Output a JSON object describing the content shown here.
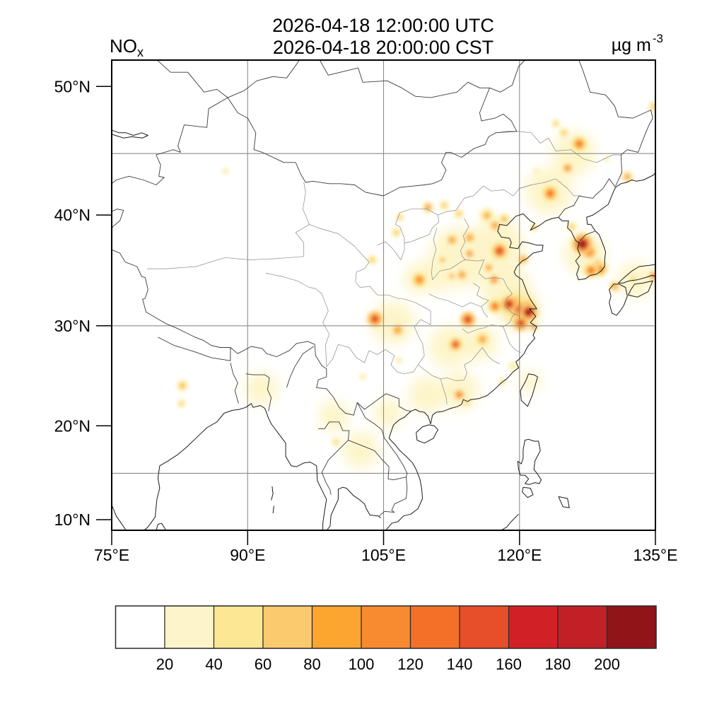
{
  "header": {
    "variable": "NO",
    "variable_sub": "x",
    "title_line1": "2026-04-18 12:00:00 UTC",
    "title_line2": "2026-04-18 20:00:00 CST",
    "units": "µg m",
    "units_exp": "-3"
  },
  "chart_data": {
    "type": "heatmap",
    "projection": "mercator",
    "lon_range": [
      75,
      135
    ],
    "lat_range": [
      8.9,
      51.9
    ],
    "x_ticks": [
      {
        "lon": 75,
        "label": "75°E"
      },
      {
        "lon": 90,
        "label": "90°E"
      },
      {
        "lon": 105,
        "label": "105°E"
      },
      {
        "lon": 120,
        "label": "120°E"
      },
      {
        "lon": 135,
        "label": "135°E"
      }
    ],
    "y_ticks": [
      {
        "lat": 10,
        "label": "10°N"
      },
      {
        "lat": 20,
        "label": "20°N"
      },
      {
        "lat": 30,
        "label": "30°N"
      },
      {
        "lat": 40,
        "label": "40°N"
      },
      {
        "lat": 50,
        "label": "50°N"
      }
    ],
    "grid_lons": [
      90,
      105,
      120
    ],
    "grid_lats": [
      15,
      30,
      45
    ],
    "grid_color": "#8c8c8c",
    "colorbar": {
      "levels": [
        20,
        40,
        60,
        80,
        100,
        120,
        140,
        160,
        180,
        200
      ],
      "colors": [
        "#ffffff",
        "#fdf5c9",
        "#fbe794",
        "#fcca6e",
        "#fda62f",
        "#f88b30",
        "#f47029",
        "#e74e2a",
        "#d22027",
        "#c02026",
        "#911419"
      ]
    },
    "washes": [
      {
        "lon": 113.5,
        "lat": 36.3,
        "value": 30,
        "r": 3.4
      },
      {
        "lon": 117.5,
        "lat": 37.3,
        "value": 35,
        "r": 3.0
      },
      {
        "lon": 118.5,
        "lat": 33.5,
        "value": 30,
        "r": 2.7
      },
      {
        "lon": 120.0,
        "lat": 31.5,
        "value": 45,
        "r": 2.0
      },
      {
        "lon": 123.3,
        "lat": 42.0,
        "value": 30,
        "r": 2.6
      },
      {
        "lon": 126.0,
        "lat": 45.0,
        "value": 28,
        "r": 2.4
      },
      {
        "lon": 106.0,
        "lat": 30.3,
        "value": 30,
        "r": 2.4
      },
      {
        "lon": 112.3,
        "lat": 28.0,
        "value": 28,
        "r": 2.3
      },
      {
        "lon": 115.6,
        "lat": 28.4,
        "value": 28,
        "r": 2.0
      },
      {
        "lon": 113.4,
        "lat": 23.6,
        "value": 30,
        "r": 2.1
      },
      {
        "lon": 127.2,
        "lat": 36.6,
        "value": 32,
        "r": 2.3
      },
      {
        "lon": 132.8,
        "lat": 34.3,
        "value": 28,
        "r": 2.0
      },
      {
        "lon": 109.8,
        "lat": 23.2,
        "value": 24,
        "r": 2.0
      },
      {
        "lon": 102.5,
        "lat": 17.5,
        "value": 24,
        "r": 2.0
      },
      {
        "lon": 99.5,
        "lat": 21.0,
        "value": 24,
        "r": 1.7
      },
      {
        "lon": 105.5,
        "lat": 21.3,
        "value": 28,
        "r": 1.6
      },
      {
        "lon": 91.5,
        "lat": 23.8,
        "value": 24,
        "r": 1.8
      },
      {
        "lon": 121.2,
        "lat": 24.5,
        "value": 24,
        "r": 1.2
      },
      {
        "lon": 110.8,
        "lat": 34.8,
        "value": 30,
        "r": 2.0
      },
      {
        "lon": 108.8,
        "lat": 34.4,
        "value": 30,
        "r": 1.6
      }
    ],
    "hotspots": [
      {
        "lon": 126.95,
        "lat": 37.5,
        "value": 200,
        "r": 1.15
      },
      {
        "lon": 127.7,
        "lat": 36.8,
        "value": 100,
        "r": 1.2
      },
      {
        "lon": 127.9,
        "lat": 35.15,
        "value": 130,
        "r": 0.85
      },
      {
        "lon": 128.9,
        "lat": 35.25,
        "value": 120,
        "r": 0.8
      },
      {
        "lon": 128.6,
        "lat": 35.85,
        "value": 90,
        "r": 0.6
      },
      {
        "lon": 129.35,
        "lat": 35.55,
        "value": 90,
        "r": 0.5
      },
      {
        "lon": 121.0,
        "lat": 31.3,
        "value": 200,
        "r": 1.0
      },
      {
        "lon": 120.0,
        "lat": 31.55,
        "value": 160,
        "r": 0.95
      },
      {
        "lon": 118.85,
        "lat": 32.05,
        "value": 180,
        "r": 0.9
      },
      {
        "lon": 120.15,
        "lat": 30.25,
        "value": 170,
        "r": 0.85
      },
      {
        "lon": 121.55,
        "lat": 29.9,
        "value": 100,
        "r": 0.6
      },
      {
        "lon": 120.9,
        "lat": 32.05,
        "value": 110,
        "r": 0.6
      },
      {
        "lon": 119.5,
        "lat": 32.3,
        "value": 130,
        "r": 0.7
      },
      {
        "lon": 117.3,
        "lat": 31.85,
        "value": 130,
        "r": 0.8
      },
      {
        "lon": 114.3,
        "lat": 30.6,
        "value": 170,
        "r": 0.85
      },
      {
        "lon": 104.05,
        "lat": 30.65,
        "value": 170,
        "r": 0.85
      },
      {
        "lon": 106.55,
        "lat": 29.6,
        "value": 90,
        "r": 0.9
      },
      {
        "lon": 112.95,
        "lat": 28.2,
        "value": 150,
        "r": 0.8
      },
      {
        "lon": 115.9,
        "lat": 28.7,
        "value": 110,
        "r": 0.7
      },
      {
        "lon": 116.4,
        "lat": 39.95,
        "value": 85,
        "r": 0.9
      },
      {
        "lon": 117.3,
        "lat": 39.1,
        "value": 95,
        "r": 0.8
      },
      {
        "lon": 118.3,
        "lat": 39.65,
        "value": 85,
        "r": 0.7
      },
      {
        "lon": 114.5,
        "lat": 38.05,
        "value": 95,
        "r": 0.8
      },
      {
        "lon": 112.55,
        "lat": 37.85,
        "value": 95,
        "r": 0.8
      },
      {
        "lon": 117.8,
        "lat": 36.9,
        "value": 145,
        "r": 1.0
      },
      {
        "lon": 120.4,
        "lat": 36.15,
        "value": 90,
        "r": 0.7
      },
      {
        "lon": 113.65,
        "lat": 34.75,
        "value": 95,
        "r": 0.8
      },
      {
        "lon": 117.2,
        "lat": 34.3,
        "value": 100,
        "r": 0.8
      },
      {
        "lon": 108.95,
        "lat": 34.3,
        "value": 115,
        "r": 0.8
      },
      {
        "lon": 109.9,
        "lat": 40.65,
        "value": 100,
        "r": 0.7
      },
      {
        "lon": 111.7,
        "lat": 40.8,
        "value": 70,
        "r": 0.6
      },
      {
        "lon": 123.4,
        "lat": 41.8,
        "value": 120,
        "r": 0.9
      },
      {
        "lon": 125.3,
        "lat": 43.85,
        "value": 100,
        "r": 0.8
      },
      {
        "lon": 126.6,
        "lat": 45.75,
        "value": 120,
        "r": 0.85
      },
      {
        "lon": 124.9,
        "lat": 46.6,
        "value": 70,
        "r": 0.6
      },
      {
        "lon": 124.0,
        "lat": 47.3,
        "value": 60,
        "r": 0.5
      },
      {
        "lon": 131.9,
        "lat": 43.15,
        "value": 90,
        "r": 0.7
      },
      {
        "lon": 134.85,
        "lat": 48.55,
        "value": 75,
        "r": 0.7
      },
      {
        "lon": 125.8,
        "lat": 39.0,
        "value": 70,
        "r": 0.6
      },
      {
        "lon": 113.35,
        "lat": 23.2,
        "value": 105,
        "r": 0.9
      },
      {
        "lon": 114.15,
        "lat": 22.35,
        "value": 75,
        "r": 0.5
      },
      {
        "lon": 130.5,
        "lat": 33.7,
        "value": 90,
        "r": 0.7
      },
      {
        "lon": 134.8,
        "lat": 34.65,
        "value": 105,
        "r": 0.8
      },
      {
        "lon": 132.5,
        "lat": 34.4,
        "value": 70,
        "r": 0.5
      },
      {
        "lon": 82.8,
        "lat": 24.1,
        "value": 80,
        "r": 0.7
      },
      {
        "lon": 82.7,
        "lat": 22.3,
        "value": 60,
        "r": 0.5
      },
      {
        "lon": 99.75,
        "lat": 18.3,
        "value": 70,
        "r": 0.5
      },
      {
        "lon": 87.6,
        "lat": 43.6,
        "value": 45,
        "r": 0.6
      },
      {
        "lon": 103.75,
        "lat": 36.1,
        "value": 60,
        "r": 0.6
      },
      {
        "lon": 106.4,
        "lat": 38.5,
        "value": 60,
        "r": 0.6
      },
      {
        "lon": 106.8,
        "lat": 39.8,
        "value": 70,
        "r": 0.5
      },
      {
        "lon": 114.5,
        "lat": 36.65,
        "value": 105,
        "r": 0.7
      },
      {
        "lon": 112.5,
        "lat": 34.65,
        "value": 85,
        "r": 0.6
      },
      {
        "lon": 111.5,
        "lat": 36.1,
        "value": 85,
        "r": 0.6
      },
      {
        "lon": 113.3,
        "lat": 40.1,
        "value": 70,
        "r": 0.6
      },
      {
        "lon": 121.6,
        "lat": 38.95,
        "value": 70,
        "r": 0.5
      },
      {
        "lon": 116.6,
        "lat": 35.4,
        "value": 90,
        "r": 0.7
      },
      {
        "lon": 121.9,
        "lat": 43.65,
        "value": 50,
        "r": 0.5
      },
      {
        "lon": 129.6,
        "lat": 44.6,
        "value": 50,
        "r": 0.5
      },
      {
        "lon": 119.3,
        "lat": 26.05,
        "value": 55,
        "r": 0.6
      },
      {
        "lon": 118.1,
        "lat": 24.5,
        "value": 55,
        "r": 0.5
      },
      {
        "lon": 102.7,
        "lat": 25.0,
        "value": 45,
        "r": 0.6
      },
      {
        "lon": 106.7,
        "lat": 26.6,
        "value": 45,
        "r": 0.6
      }
    ]
  }
}
